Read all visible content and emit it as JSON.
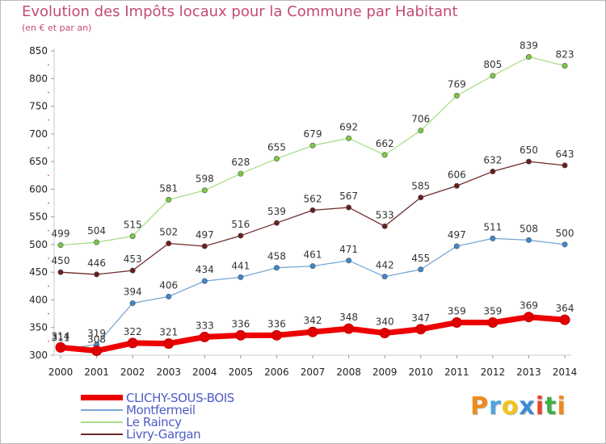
{
  "title": "Evolution des Impôts locaux pour la Commune par Habitant",
  "subtitle": "(en € et par an)",
  "brand": {
    "letters": [
      "P",
      "r",
      "o",
      "x",
      "i",
      "t",
      "i"
    ],
    "colors": [
      "#f08a1c",
      "#4fa4e0",
      "#f2c31b",
      "#3f8bd6",
      "#e8452c",
      "#3fae49",
      "#f08a1c"
    ]
  },
  "chart_data": {
    "type": "line",
    "x": [
      2000,
      2001,
      2002,
      2003,
      2004,
      2005,
      2006,
      2007,
      2008,
      2009,
      2010,
      2011,
      2012,
      2013,
      2014
    ],
    "ylim": [
      300,
      850
    ],
    "yticks": [
      300,
      350,
      400,
      450,
      500,
      550,
      600,
      650,
      700,
      750,
      800,
      850
    ],
    "grid": false,
    "legend_position": "bottom-left",
    "series": [
      {
        "name": "CLICHY-SOUS-BOIS",
        "color": "#ee0000",
        "marker": "#e00000",
        "width": 7,
        "values": [
          314,
          308,
          322,
          321,
          333,
          336,
          336,
          342,
          348,
          340,
          347,
          359,
          359,
          369,
          364
        ],
        "labels": [
          "314",
          "308",
          "322",
          "321",
          "333",
          "336",
          "336",
          "342",
          "348",
          "340",
          "347",
          "359",
          "359",
          "369",
          "364"
        ]
      },
      {
        "name": "Montfermeil",
        "color": "#7ba7d4",
        "marker": "#3f87cf",
        "width": 1.3,
        "values": [
          311,
          319,
          394,
          406,
          434,
          441,
          458,
          461,
          471,
          442,
          455,
          497,
          511,
          508,
          500
        ],
        "labels": [
          "311",
          "319",
          "394",
          "406",
          "434",
          "441",
          "458",
          "461",
          "471",
          "442",
          "455",
          "497",
          "511",
          "508",
          "500"
        ]
      },
      {
        "name": "Le Raincy",
        "color": "#a9de86",
        "marker": "#7ac943",
        "width": 1.3,
        "values": [
          499,
          504,
          515,
          581,
          598,
          628,
          655,
          679,
          692,
          662,
          706,
          769,
          805,
          839,
          823
        ],
        "labels": [
          "499",
          "504",
          "515",
          "581",
          "598",
          "628",
          "655",
          "679",
          "692",
          "662",
          "706",
          "769",
          "805",
          "839",
          "823"
        ]
      },
      {
        "name": "Livry-Gargan",
        "color": "#6e2a2a",
        "marker": "#6a1d1d",
        "width": 1.3,
        "values": [
          450,
          446,
          453,
          502,
          497,
          516,
          539,
          562,
          567,
          533,
          585,
          606,
          632,
          650,
          643
        ],
        "labels": [
          "450",
          "446",
          "453",
          "502",
          "497",
          "516",
          "539",
          "562",
          "567",
          "533",
          "585",
          "606",
          "632",
          "650",
          "643"
        ]
      }
    ]
  }
}
